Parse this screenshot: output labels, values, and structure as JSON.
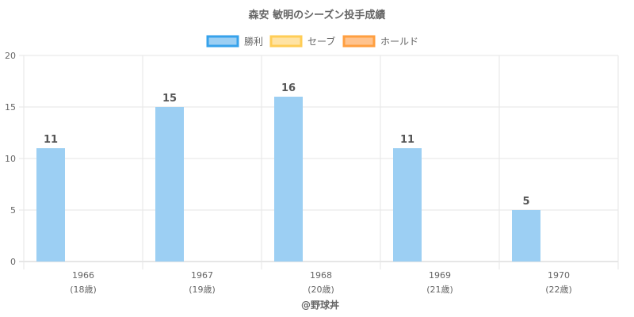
{
  "chart_data": {
    "type": "bar",
    "title": "森安 敏明のシーズン投手成績",
    "categories": [
      {
        "year": "1966",
        "age": "(18歳)"
      },
      {
        "year": "1967",
        "age": "(19歳)"
      },
      {
        "year": "1968",
        "age": "(20歳)"
      },
      {
        "year": "1969",
        "age": "(21歳)"
      },
      {
        "year": "1970",
        "age": "(22歳)"
      }
    ],
    "series": [
      {
        "name": "勝利",
        "values": [
          11,
          15,
          16,
          11,
          5
        ],
        "fill": "#9ccff3",
        "stroke": "#36a2eb"
      },
      {
        "name": "セーブ",
        "values": [
          0,
          0,
          0,
          0,
          0
        ],
        "fill": "#ffe3a4",
        "stroke": "#ffcd56"
      },
      {
        "name": "ホールド",
        "values": [
          0,
          0,
          0,
          0,
          0
        ],
        "fill": "#ffc38e",
        "stroke": "#ff9f40"
      }
    ],
    "y_ticks": [
      "0",
      "5",
      "10",
      "15",
      "20"
    ],
    "ylim": [
      0,
      20
    ],
    "grid": true,
    "legend_position": "top",
    "show_data_labels_for": "勝利"
  },
  "footer": {
    "credit": "@野球丼"
  }
}
